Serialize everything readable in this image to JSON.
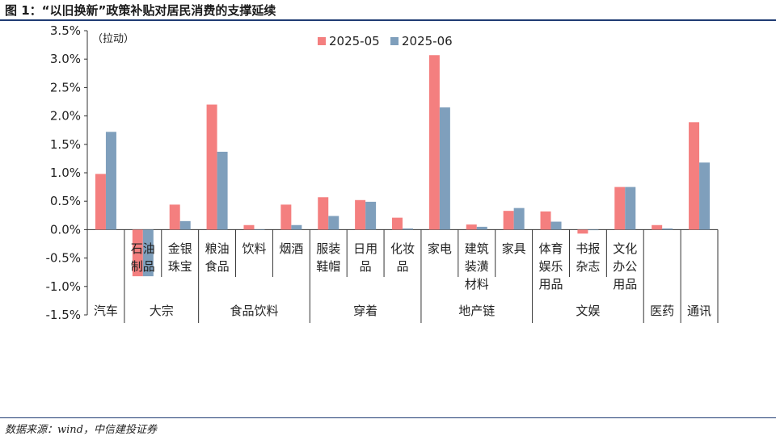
{
  "header": {
    "title": "图 1：“以旧换新”政策补贴对居民消费的支撑延续"
  },
  "footer": {
    "source": "数据来源：wind，中信建投证券"
  },
  "chart_data": {
    "type": "bar",
    "unit_note": "（拉动）",
    "ylim": [
      -1.5,
      3.5
    ],
    "y_ticks": [
      3.5,
      3.0,
      2.5,
      2.0,
      1.5,
      1.0,
      0.5,
      0.0,
      -0.5,
      -1.0,
      -1.5
    ],
    "y_tick_labels": [
      "3.5%",
      "3.0%",
      "2.5%",
      "2.0%",
      "1.5%",
      "1.0%",
      "0.5%",
      "0.0%",
      "-0.5%",
      "-1.0%",
      "-1.5%"
    ],
    "grid": false,
    "legend_position": "top-center",
    "categories": [
      "汽车",
      "石油制品",
      "金银珠宝",
      "粮油食品",
      "饮料",
      "烟酒",
      "服装鞋帽",
      "日用品",
      "化妆品",
      "家电",
      "建筑装潢材料",
      "家具",
      "体育娱乐用品",
      "书报杂志",
      "文化办公用品",
      "医药",
      "通讯"
    ],
    "category_label_lines": [
      [],
      [
        "石油",
        "制品"
      ],
      [
        "金银",
        "珠宝"
      ],
      [
        "粮油",
        "食品"
      ],
      [
        "饮料"
      ],
      [
        "烟酒"
      ],
      [
        "服装",
        "鞋帽"
      ],
      [
        "日用",
        "品"
      ],
      [
        "化妆",
        "品"
      ],
      [
        "家电"
      ],
      [
        "建筑",
        "装潢",
        "材料"
      ],
      [
        "家具"
      ],
      [
        "体育",
        "娱乐",
        "用品"
      ],
      [
        "书报",
        "杂志"
      ],
      [
        "文化",
        "办公",
        "用品"
      ],
      [],
      []
    ],
    "groups": [
      {
        "label": "汽车",
        "start": 0,
        "end": 0
      },
      {
        "label": "大宗",
        "start": 1,
        "end": 2
      },
      {
        "label": "食品饮料",
        "start": 3,
        "end": 5
      },
      {
        "label": "穿着",
        "start": 6,
        "end": 8
      },
      {
        "label": "地产链",
        "start": 9,
        "end": 11
      },
      {
        "label": "文娱",
        "start": 12,
        "end": 14
      },
      {
        "label": "医药",
        "start": 15,
        "end": 15
      },
      {
        "label": "通讯",
        "start": 16,
        "end": 16
      }
    ],
    "series": [
      {
        "name": "2025-05",
        "color": "#f47f7f",
        "values": [
          0.98,
          -0.82,
          0.44,
          2.2,
          0.08,
          0.44,
          0.57,
          0.52,
          0.21,
          3.07,
          0.09,
          0.33,
          0.32,
          -0.07,
          0.75,
          0.08,
          1.89
        ]
      },
      {
        "name": "2025-06",
        "color": "#7f9fbc",
        "values": [
          1.72,
          -0.82,
          0.15,
          1.37,
          0.0,
          0.08,
          0.24,
          0.49,
          0.02,
          2.15,
          0.05,
          0.38,
          0.14,
          -0.01,
          0.75,
          0.02,
          1.18
        ]
      }
    ]
  }
}
